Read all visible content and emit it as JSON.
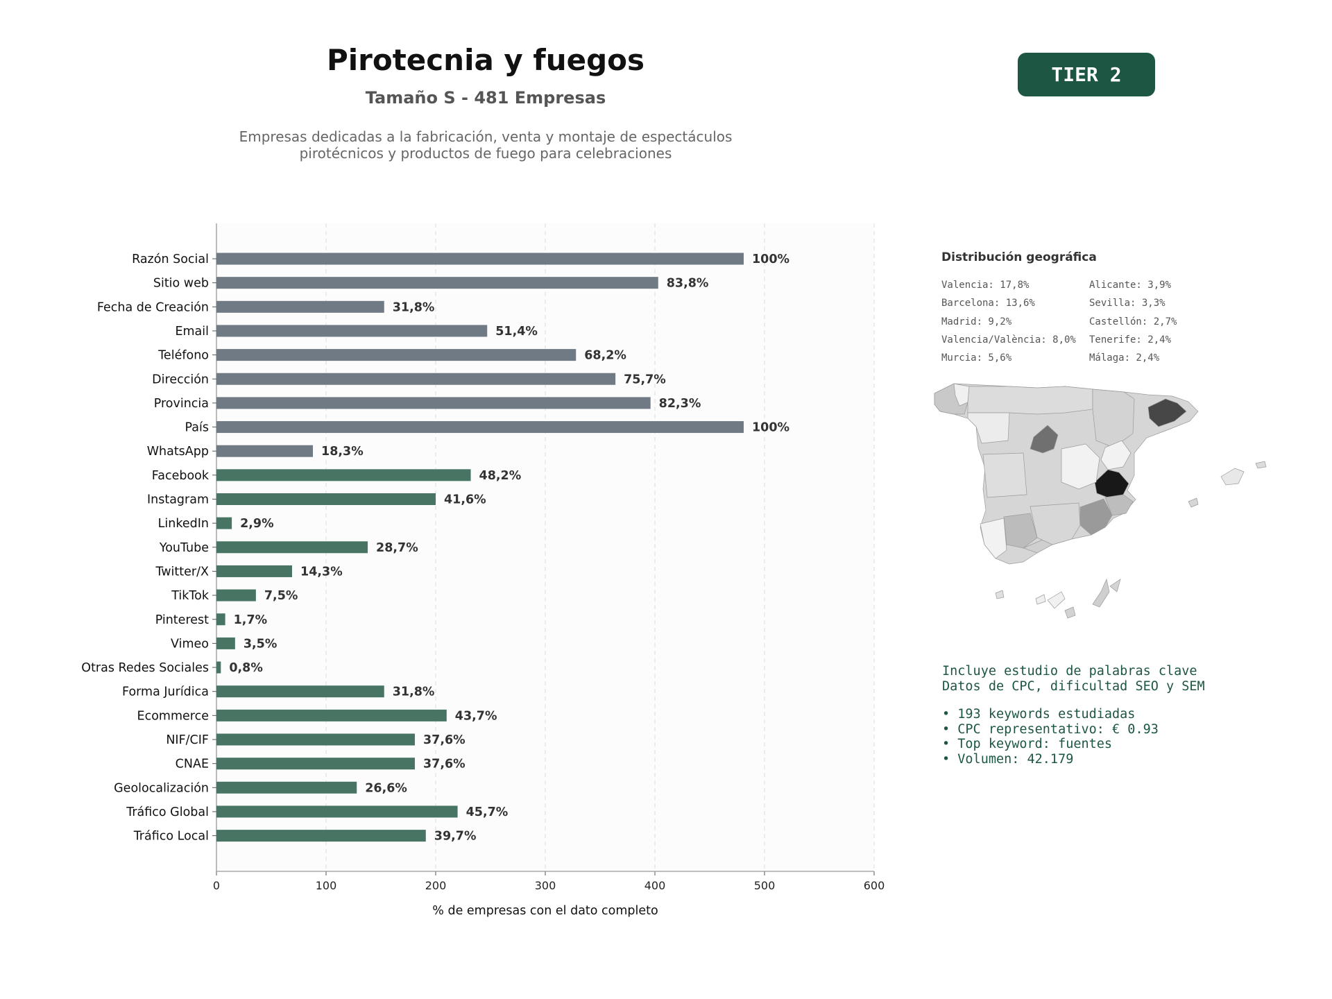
{
  "header": {
    "title": "Pirotecnia y fuegos",
    "subtitle": "Tamaño S - 481 Empresas",
    "description_lines": [
      "Empresas dedicadas a la fabricación, venta y montaje de espectáculos",
      "pirotécnicos y productos de fuego para celebraciones"
    ],
    "tier_badge": "TIER 2"
  },
  "colors": {
    "gray_bar": "#6f7a84",
    "green_bar": "#487563",
    "badge": "#1d5642",
    "keyword_text": "#1d5642"
  },
  "chart_data": {
    "type": "bar",
    "orientation": "horizontal",
    "title": "",
    "xlabel": "% de empresas con el dato completo",
    "ylabel": "",
    "xlim": [
      0,
      600
    ],
    "xticks": [
      "0",
      "100",
      "200",
      "300",
      "400",
      "500",
      "600"
    ],
    "grid": "vertical dashed",
    "categories": [
      "Razón Social",
      "Sitio web",
      "Fecha de Creación",
      "Email",
      "Teléfono",
      "Dirección",
      "Provincia",
      "País",
      "WhatsApp",
      "Facebook",
      "Instagram",
      "LinkedIn",
      "YouTube",
      "Twitter/X",
      "TikTok",
      "Pinterest",
      "Vimeo",
      "Otras Redes Sociales",
      "Forma Jurídica",
      "Ecommerce",
      "NIF/CIF",
      "CNAE",
      "Geolocalización",
      "Tráfico Global",
      "Tráfico Local"
    ],
    "values": [
      481,
      403,
      153,
      247,
      328,
      364,
      396,
      481,
      88,
      232,
      200,
      14,
      138,
      69,
      36,
      8,
      17,
      4,
      153,
      210,
      181,
      181,
      128,
      220,
      191
    ],
    "labels": [
      "100%",
      "83,8%",
      "31,8%",
      "51,4%",
      "68,2%",
      "75,7%",
      "82,3%",
      "100%",
      "18,3%",
      "48,2%",
      "41,6%",
      "2,9%",
      "28,7%",
      "14,3%",
      "7,5%",
      "1,7%",
      "3,5%",
      "0,8%",
      "31,8%",
      "43,7%",
      "37,6%",
      "37,6%",
      "26,6%",
      "45,7%",
      "39,7%"
    ],
    "bar_color_groups": [
      "gray",
      "gray",
      "gray",
      "gray",
      "gray",
      "gray",
      "gray",
      "gray",
      "gray",
      "green",
      "green",
      "green",
      "green",
      "green",
      "green",
      "green",
      "green",
      "green",
      "green",
      "green",
      "green",
      "green",
      "green",
      "green",
      "green"
    ]
  },
  "geo": {
    "title": "Distribución geográfica",
    "col1": [
      "Valencia: 17,8%",
      "Barcelona: 13,6%",
      "Madrid: 9,2%",
      "Valencia/València: 8,0%",
      "Murcia: 5,6%"
    ],
    "col2": [
      "Alicante: 3,9%",
      "Sevilla: 3,3%",
      "Castellón: 2,7%",
      "Tenerife: 2,4%",
      "Málaga: 2,4%"
    ]
  },
  "keywords": {
    "intro_lines": [
      "Incluye estudio de palabras clave",
      "Datos de CPC, dificultad SEO y SEM"
    ],
    "bullets": [
      "• 193 keywords estudiadas",
      "• CPC representativo: € 0.93",
      "• Top keyword: fuentes",
      "• Volumen: 42.179"
    ]
  }
}
